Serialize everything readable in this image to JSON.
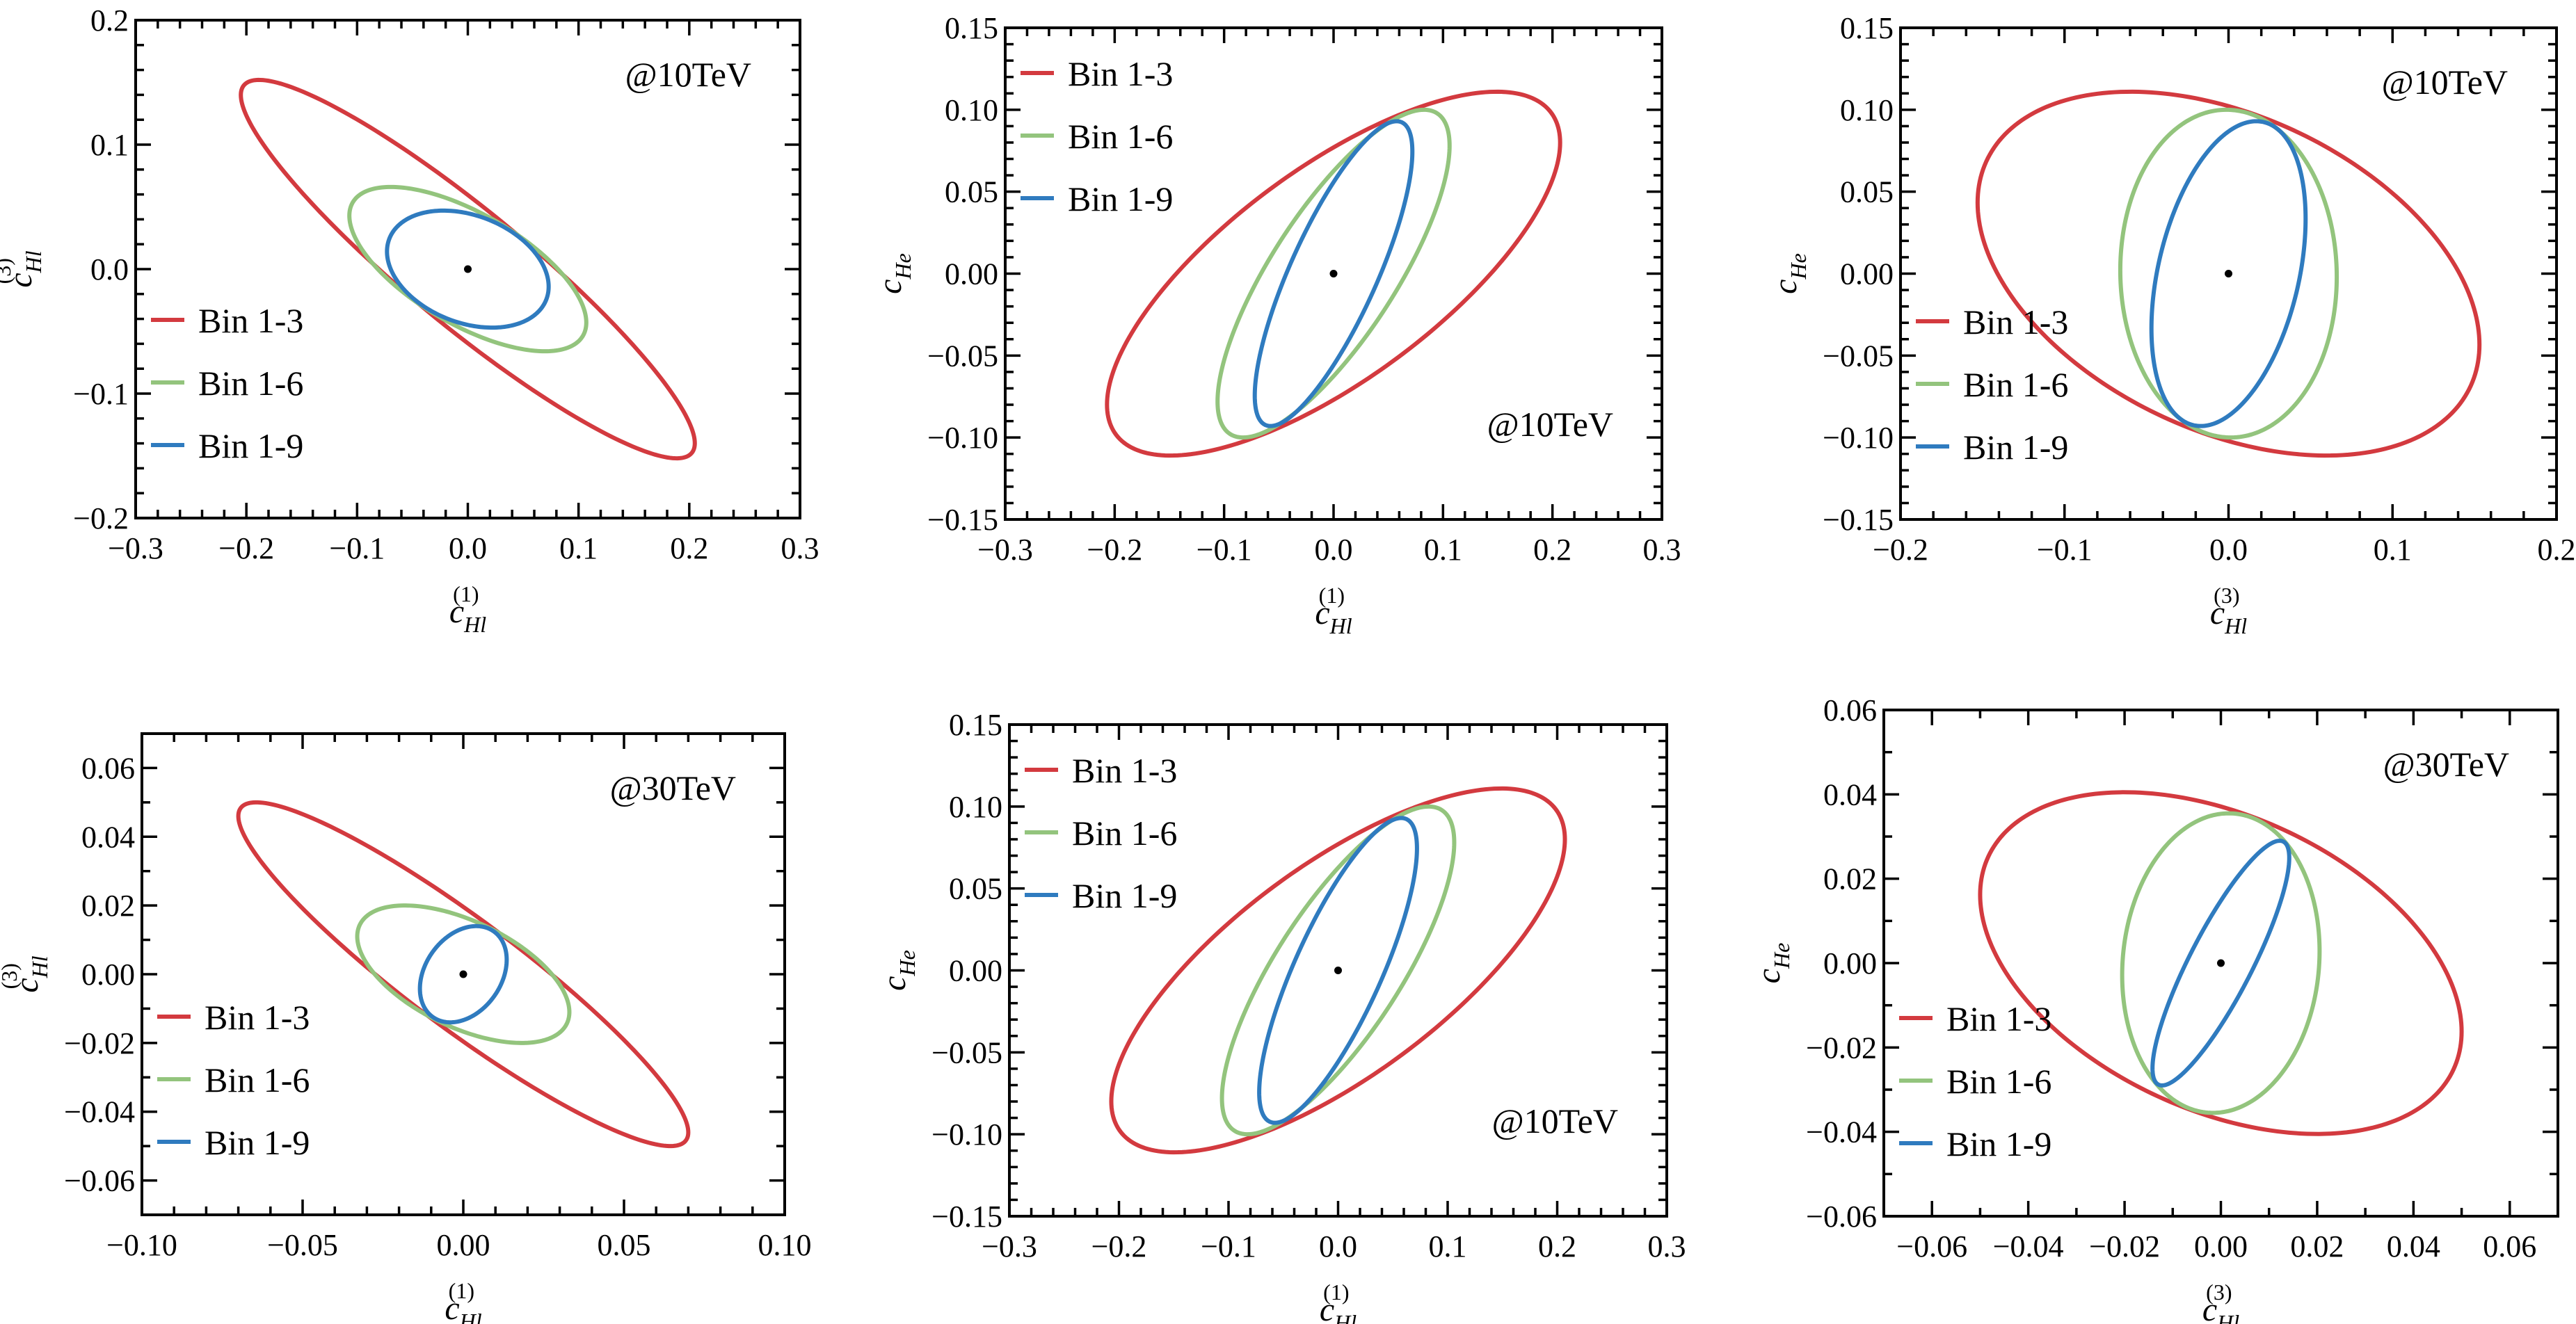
{
  "series_colors": {
    "Bin 1-3": "#d33a3f",
    "Bin 1-6": "#93c47d",
    "Bin 1-9": "#2f7bbf"
  },
  "chart_data": [
    {
      "type": "scatter",
      "title": "",
      "annotation": "@10TeV",
      "annotation_position": "top-right",
      "xlabel": {
        "base": "c",
        "sub": "Hl",
        "sup": "(1)"
      },
      "ylabel": {
        "base": "c",
        "sub": "Hl",
        "sup": "(3)"
      },
      "xlim": [
        -0.3,
        0.3
      ],
      "ylim": [
        -0.2,
        0.2
      ],
      "xticks": [
        -0.3,
        -0.2,
        -0.1,
        0.0,
        0.1,
        0.2,
        0.3
      ],
      "xtick_labels": [
        "−0.3",
        "−0.2",
        "−0.1",
        "0.0",
        "0.1",
        "0.2",
        "0.3"
      ],
      "yticks": [
        -0.2,
        -0.1,
        0.0,
        0.1,
        0.2
      ],
      "ytick_labels": [
        "−0.2",
        "−0.1",
        "0.0",
        "0.1",
        "0.2"
      ],
      "legend_position": "bottom-left",
      "best_fit_point": [
        0,
        0
      ],
      "series": [
        {
          "name": "Bin 1-3",
          "center": [
            0,
            0
          ],
          "x_halfwidth": 0.205,
          "y_halfwidth": 0.152,
          "correlation": -0.92
        },
        {
          "name": "Bin 1-6",
          "center": [
            0,
            0
          ],
          "x_halfwidth": 0.107,
          "y_halfwidth": 0.066,
          "correlation": -0.65
        },
        {
          "name": "Bin 1-9",
          "center": [
            0,
            0
          ],
          "x_halfwidth": 0.073,
          "y_halfwidth": 0.047,
          "correlation": -0.3
        }
      ]
    },
    {
      "type": "scatter",
      "title": "",
      "annotation": "@10TeV",
      "annotation_position": "bottom-right",
      "xlabel": {
        "base": "c",
        "sub": "Hl",
        "sup": "(1)"
      },
      "ylabel": {
        "base": "c",
        "sub": "He",
        "sup": ""
      },
      "xlim": [
        -0.3,
        0.3
      ],
      "ylim": [
        -0.15,
        0.15
      ],
      "xticks": [
        -0.3,
        -0.2,
        -0.1,
        0.0,
        0.1,
        0.2,
        0.3
      ],
      "xtick_labels": [
        "−0.3",
        "−0.2",
        "−0.1",
        "0.0",
        "0.1",
        "0.2",
        "0.3"
      ],
      "yticks": [
        -0.15,
        -0.1,
        -0.05,
        0.0,
        0.05,
        0.1,
        0.15
      ],
      "ytick_labels": [
        "−0.15",
        "−0.10",
        "−0.05",
        "0.00",
        "0.05",
        "0.10",
        "0.15"
      ],
      "legend_position": "top-left",
      "best_fit_point": [
        0,
        0
      ],
      "series": [
        {
          "name": "Bin 1-3",
          "center": [
            0,
            0
          ],
          "x_halfwidth": 0.207,
          "y_halfwidth": 0.111,
          "correlation": 0.72
        },
        {
          "name": "Bin 1-6",
          "center": [
            0,
            0
          ],
          "x_halfwidth": 0.106,
          "y_halfwidth": 0.1,
          "correlation": 0.78
        },
        {
          "name": "Bin 1-9",
          "center": [
            0,
            0
          ],
          "x_halfwidth": 0.072,
          "y_halfwidth": 0.093,
          "correlation": 0.8
        }
      ]
    },
    {
      "type": "scatter",
      "title": "",
      "annotation": "@10TeV",
      "annotation_position": "top-right",
      "xlabel": {
        "base": "c",
        "sub": "Hl",
        "sup": "(3)"
      },
      "ylabel": {
        "base": "c",
        "sub": "He",
        "sup": ""
      },
      "xlim": [
        -0.2,
        0.2
      ],
      "ylim": [
        -0.15,
        0.15
      ],
      "xticks": [
        -0.2,
        -0.1,
        0.0,
        0.1,
        0.2
      ],
      "xtick_labels": [
        "−0.2",
        "−0.1",
        "0.0",
        "0.1",
        "0.2"
      ],
      "yticks": [
        -0.15,
        -0.1,
        -0.05,
        0.0,
        0.05,
        0.1,
        0.15
      ],
      "ytick_labels": [
        "−0.15",
        "−0.10",
        "−0.05",
        "0.00",
        "0.05",
        "0.10",
        "0.15"
      ],
      "legend_position": "bottom-left",
      "best_fit_point": [
        0,
        0
      ],
      "series": [
        {
          "name": "Bin 1-3",
          "center": [
            0,
            0
          ],
          "x_halfwidth": 0.153,
          "y_halfwidth": 0.111,
          "correlation": -0.39
        },
        {
          "name": "Bin 1-6",
          "center": [
            0,
            0
          ],
          "x_halfwidth": 0.066,
          "y_halfwidth": 0.1,
          "correlation": -0.02
        },
        {
          "name": "Bin 1-9",
          "center": [
            0,
            0
          ],
          "x_halfwidth": 0.047,
          "y_halfwidth": 0.093,
          "correlation": 0.36
        }
      ]
    },
    {
      "type": "scatter",
      "title": "",
      "annotation": "@30TeV",
      "annotation_position": "top-right",
      "xlabel": {
        "base": "c",
        "sub": "Hl",
        "sup": "(1)"
      },
      "ylabel": {
        "base": "c",
        "sub": "Hl",
        "sup": "(3)"
      },
      "xlim": [
        -0.1,
        0.1
      ],
      "ylim": [
        -0.07,
        0.07
      ],
      "xticks": [
        -0.1,
        -0.05,
        0.0,
        0.05,
        0.1
      ],
      "xtick_labels": [
        "−0.10",
        "−0.05",
        "0.00",
        "0.05",
        "0.10"
      ],
      "yticks": [
        -0.06,
        -0.04,
        -0.02,
        0.0,
        0.02,
        0.04,
        0.06
      ],
      "ytick_labels": [
        "−0.06",
        "−0.04",
        "−0.02",
        "0.00",
        "0.02",
        "0.04",
        "0.06"
      ],
      "legend_position": "bottom-left",
      "best_fit_point": [
        0,
        0
      ],
      "series": [
        {
          "name": "Bin 1-3",
          "center": [
            0,
            0
          ],
          "x_halfwidth": 0.07,
          "y_halfwidth": 0.05,
          "correlation": -0.92
        },
        {
          "name": "Bin 1-6",
          "center": [
            0,
            0
          ],
          "x_halfwidth": 0.033,
          "y_halfwidth": 0.02,
          "correlation": -0.55
        },
        {
          "name": "Bin 1-9",
          "center": [
            0,
            0
          ],
          "x_halfwidth": 0.0135,
          "y_halfwidth": 0.014,
          "correlation": 0.3
        }
      ]
    },
    {
      "type": "scatter",
      "title": "",
      "annotation": "@10TeV",
      "annotation_position": "bottom-right",
      "xlabel": {
        "base": "c",
        "sub": "Hl",
        "sup": "(1)"
      },
      "ylabel": {
        "base": "c",
        "sub": "He",
        "sup": ""
      },
      "xlim": [
        -0.3,
        0.3
      ],
      "ylim": [
        -0.15,
        0.15
      ],
      "xticks": [
        -0.3,
        -0.2,
        -0.1,
        0.0,
        0.1,
        0.2,
        0.3
      ],
      "xtick_labels": [
        "−0.3",
        "−0.2",
        "−0.1",
        "0.0",
        "0.1",
        "0.2",
        "0.3"
      ],
      "yticks": [
        -0.15,
        -0.1,
        -0.05,
        0.0,
        0.05,
        0.1,
        0.15
      ],
      "ytick_labels": [
        "−0.15",
        "−0.10",
        "−0.05",
        "0.00",
        "0.05",
        "0.10",
        "0.15"
      ],
      "legend_position": "top-left",
      "best_fit_point": [
        0,
        0
      ],
      "series": [
        {
          "name": "Bin 1-3",
          "center": [
            0,
            0
          ],
          "x_halfwidth": 0.207,
          "y_halfwidth": 0.111,
          "correlation": 0.72
        },
        {
          "name": "Bin 1-6",
          "center": [
            0,
            0
          ],
          "x_halfwidth": 0.106,
          "y_halfwidth": 0.1,
          "correlation": 0.78
        },
        {
          "name": "Bin 1-9",
          "center": [
            0,
            0
          ],
          "x_halfwidth": 0.072,
          "y_halfwidth": 0.093,
          "correlation": 0.8
        }
      ]
    },
    {
      "type": "scatter",
      "title": "",
      "annotation": "@30TeV",
      "annotation_position": "top-right",
      "xlabel": {
        "base": "c",
        "sub": "Hl",
        "sup": "(3)"
      },
      "ylabel": {
        "base": "c",
        "sub": "He",
        "sup": ""
      },
      "xlim": [
        -0.07,
        0.07
      ],
      "ylim": [
        -0.06,
        0.06
      ],
      "xticks": [
        -0.06,
        -0.04,
        -0.02,
        0.0,
        0.02,
        0.04,
        0.06
      ],
      "xtick_labels": [
        "−0.06",
        "−0.04",
        "−0.02",
        "0.00",
        "0.02",
        "0.04",
        "0.06"
      ],
      "yticks": [
        -0.06,
        -0.04,
        -0.02,
        0.0,
        0.02,
        0.04,
        0.06
      ],
      "ytick_labels": [
        "−0.06",
        "−0.04",
        "−0.02",
        "0.00",
        "0.02",
        "0.04",
        "0.06"
      ],
      "legend_position": "bottom-left",
      "best_fit_point": [
        0,
        0
      ],
      "series": [
        {
          "name": "Bin 1-3",
          "center": [
            0,
            0
          ],
          "x_halfwidth": 0.05,
          "y_halfwidth": 0.0405,
          "correlation": -0.4
        },
        {
          "name": "Bin 1-6",
          "center": [
            0,
            0
          ],
          "x_halfwidth": 0.0205,
          "y_halfwidth": 0.0355,
          "correlation": 0.08
        },
        {
          "name": "Bin 1-9",
          "center": [
            0,
            0
          ],
          "x_halfwidth": 0.0142,
          "y_halfwidth": 0.029,
          "correlation": 0.86
        }
      ]
    }
  ]
}
